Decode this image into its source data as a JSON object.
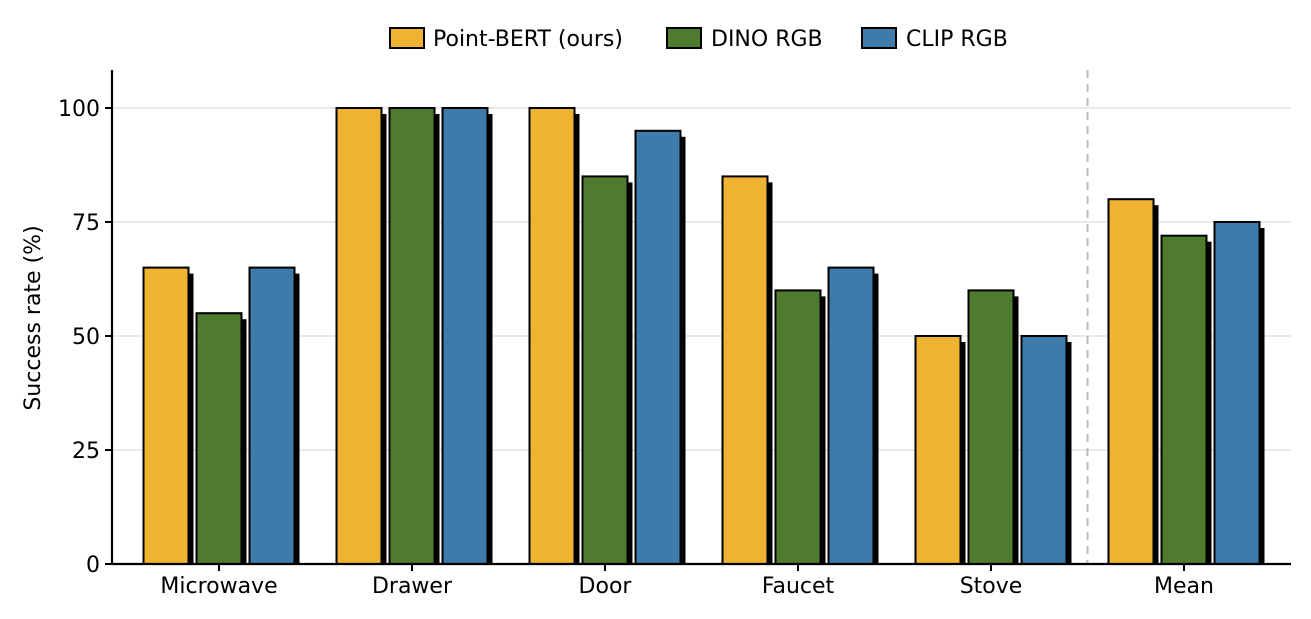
{
  "chart_data": {
    "type": "bar",
    "categories": [
      "Microwave",
      "Drawer",
      "Door",
      "Faucet",
      "Stove",
      "Mean"
    ],
    "series": [
      {
        "name": "Point-BERT (ours)",
        "color": "#F0B331",
        "values": [
          65,
          100,
          100,
          85,
          50,
          80
        ]
      },
      {
        "name": "DINO RGB",
        "color": "#4E7B2E",
        "values": [
          55,
          100,
          85,
          60,
          60,
          72
        ]
      },
      {
        "name": "CLIP RGB",
        "color": "#3E7BAA",
        "values": [
          65,
          100,
          95,
          65,
          50,
          75
        ]
      }
    ],
    "title": "",
    "xlabel": "",
    "ylabel": "Success rate (%)",
    "ylim": [
      0,
      108
    ],
    "yticks": [
      0,
      25,
      50,
      75,
      100
    ],
    "ytick_labels": [
      "0",
      "25",
      "50",
      "75",
      "100"
    ],
    "grid": "horizontal",
    "legend_position": "top-center",
    "separator_before_category": "Mean",
    "bar_shadow": true
  }
}
